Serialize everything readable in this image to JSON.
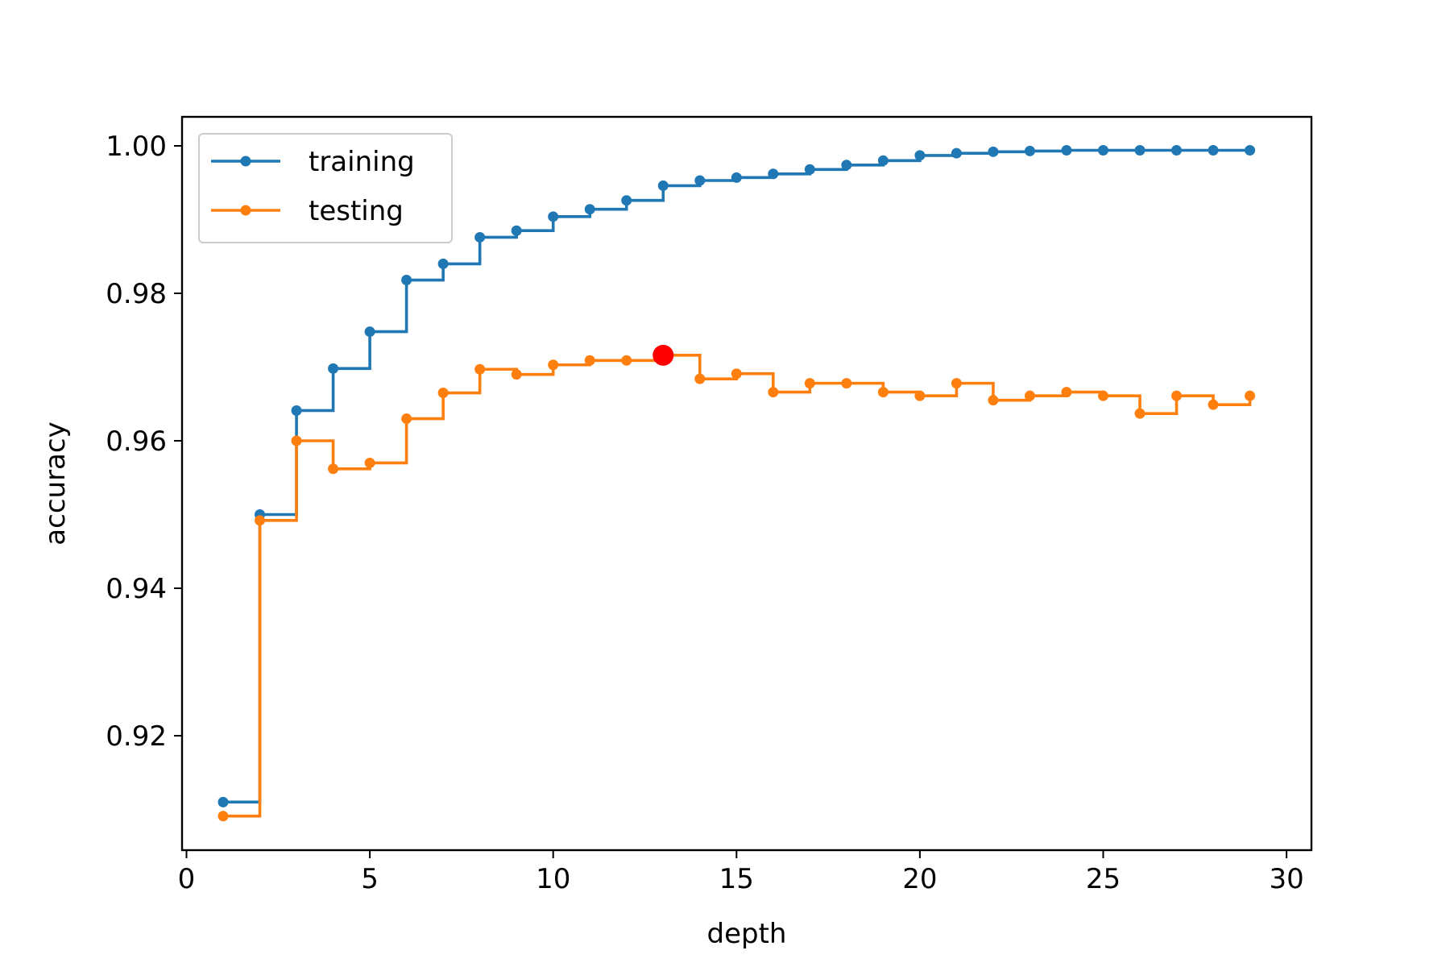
{
  "chart_data": {
    "type": "line",
    "step": "post",
    "xlabel": "depth",
    "ylabel": "accuracy",
    "xlim": [
      -0.4,
      30.4
    ],
    "ylim": [
      0.9055,
      1.004
    ],
    "xticks": [
      0,
      5,
      10,
      15,
      20,
      25,
      30
    ],
    "yticks": [
      0.92,
      0.94,
      0.96,
      0.98,
      1.0
    ],
    "xtick_labels": [
      "0",
      "5",
      "10",
      "15",
      "20",
      "25",
      "30"
    ],
    "ytick_labels": [
      "0.92",
      "0.94",
      "0.96",
      "0.98",
      "1.00"
    ],
    "grid": false,
    "legend_position": "top-left",
    "x": [
      1,
      2,
      3,
      4,
      5,
      6,
      7,
      8,
      9,
      10,
      11,
      12,
      13,
      14,
      15,
      16,
      17,
      18,
      19,
      20,
      21,
      22,
      23,
      24,
      25,
      26,
      27,
      28,
      29
    ],
    "series": [
      {
        "name": "training",
        "color": "#1f77b4",
        "values": [
          0.911,
          0.95,
          0.9641,
          0.9698,
          0.9748,
          0.9818,
          0.984,
          0.9876,
          0.9885,
          0.9904,
          0.9914,
          0.9926,
          0.9946,
          0.9953,
          0.9957,
          0.9962,
          0.9968,
          0.9974,
          0.998,
          0.9987,
          0.999,
          0.9992,
          0.9993,
          0.9994,
          0.9994,
          0.9994,
          0.9994,
          0.9994,
          0.9994
        ]
      },
      {
        "name": "testing",
        "color": "#ff7f0e",
        "values": [
          0.9091,
          0.9492,
          0.96,
          0.9562,
          0.957,
          0.963,
          0.9665,
          0.9697,
          0.969,
          0.9703,
          0.9709,
          0.9709,
          0.9716,
          0.9684,
          0.9691,
          0.9666,
          0.9678,
          0.9678,
          0.9666,
          0.9661,
          0.9678,
          0.9655,
          0.9661,
          0.9666,
          0.9661,
          0.9637,
          0.9661,
          0.9649,
          0.9661
        ]
      }
    ],
    "highlight": {
      "x": 13,
      "y": 0.9716,
      "color": "#ff0000"
    }
  }
}
